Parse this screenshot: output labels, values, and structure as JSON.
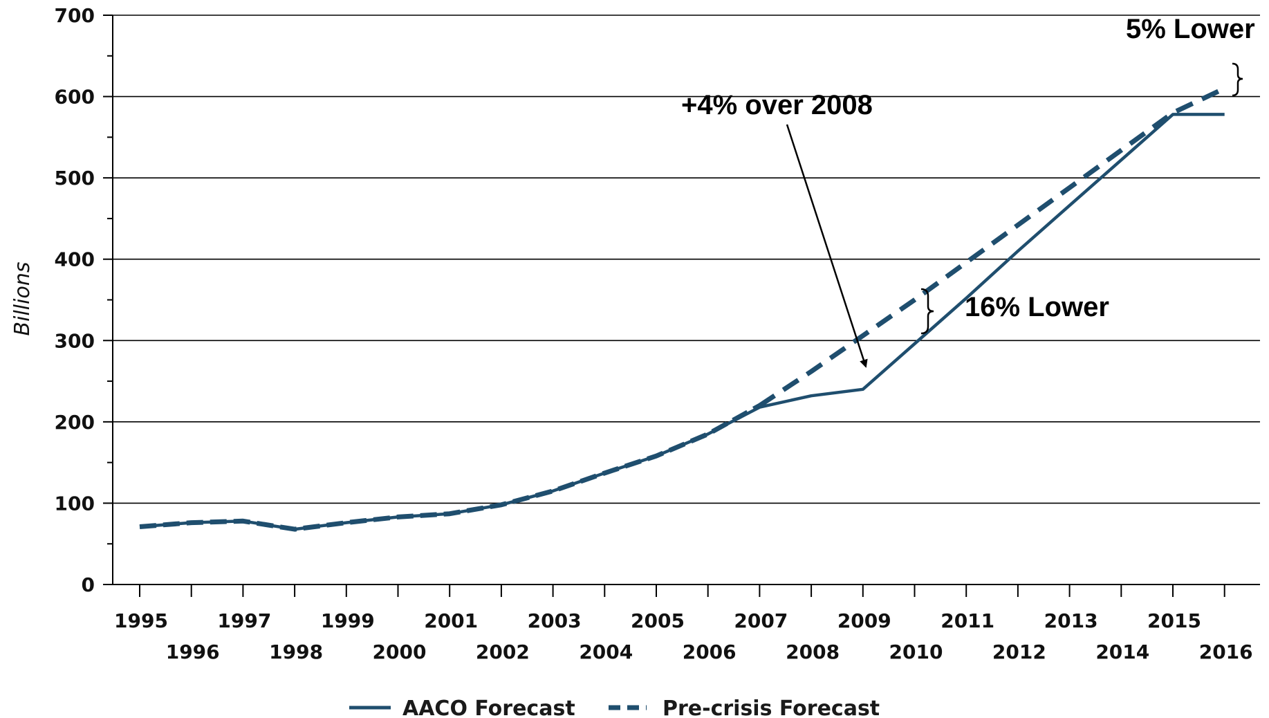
{
  "chart_data": {
    "type": "line",
    "ylabel": "Billions",
    "xlabel": "",
    "ylim": [
      0,
      700
    ],
    "yticks": [
      0,
      100,
      200,
      300,
      400,
      500,
      600,
      700
    ],
    "grid": true,
    "legend_position": "bottom",
    "x": [
      "1995",
      "1996",
      "1997",
      "1998",
      "1999",
      "2000",
      "2001",
      "2002",
      "2003",
      "2004",
      "2005",
      "2006",
      "2007",
      "2008",
      "2009",
      "2010",
      "2011",
      "2012",
      "2013",
      "2014",
      "2015",
      "2016"
    ],
    "series": [
      {
        "name": "AACO Forecast",
        "style": "solid",
        "color": "#1f4e6e",
        "values": [
          71,
          76,
          78,
          68,
          76,
          83,
          87,
          98,
          115,
          137,
          158,
          185,
          218,
          232,
          240,
          296,
          352,
          410,
          466,
          522,
          578,
          578
        ]
      },
      {
        "name": "Pre-crisis Forecast",
        "style": "dashed",
        "color": "#1f4e6e",
        "values": [
          71,
          76,
          78,
          68,
          76,
          83,
          87,
          98,
          115,
          137,
          158,
          185,
          220,
          262,
          306,
          350,
          396,
          442,
          488,
          534,
          580,
          610
        ]
      }
    ],
    "annotations": {
      "arrow_label": "+4% over 2008",
      "gap_2010": "16% Lower",
      "gap_2016": "5% Lower"
    }
  }
}
